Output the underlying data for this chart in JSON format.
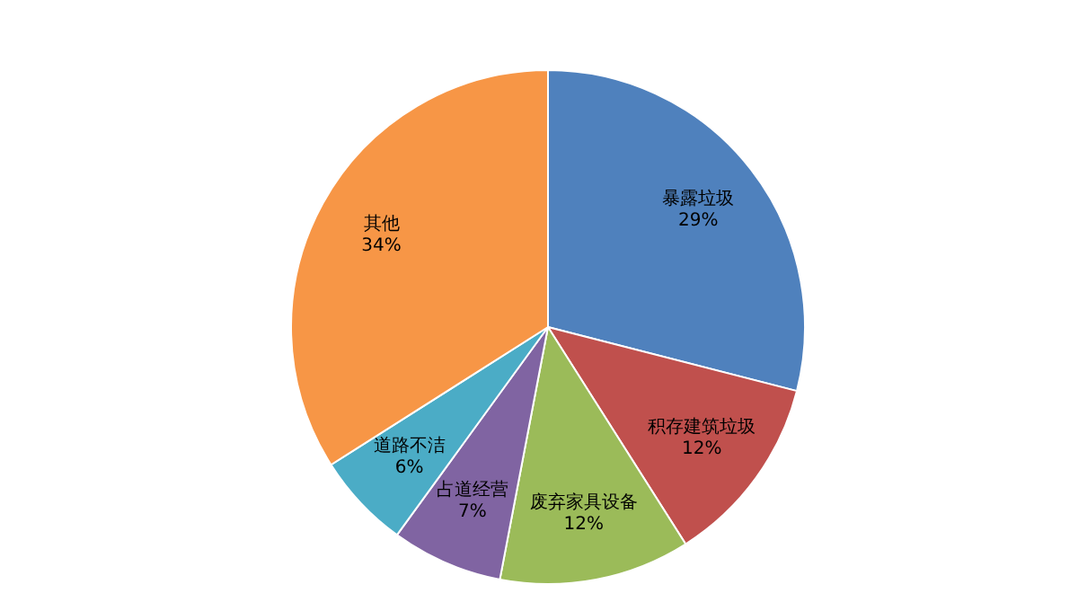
{
  "chart_data": {
    "type": "pie",
    "categories": [
      "暴露垃圾",
      "积存建筑垃圾",
      "废弃家具设备",
      "占道经营",
      "道路不洁",
      "其他"
    ],
    "values": [
      29,
      12,
      12,
      7,
      6,
      34
    ],
    "value_labels": [
      "29%",
      "12%",
      "12%",
      "7%",
      "6%",
      "34%"
    ],
    "colors": [
      "#4f81bd",
      "#c0504d",
      "#9bbb59",
      "#8064a2",
      "#4bacc6",
      "#f79646"
    ],
    "legend": false
  }
}
